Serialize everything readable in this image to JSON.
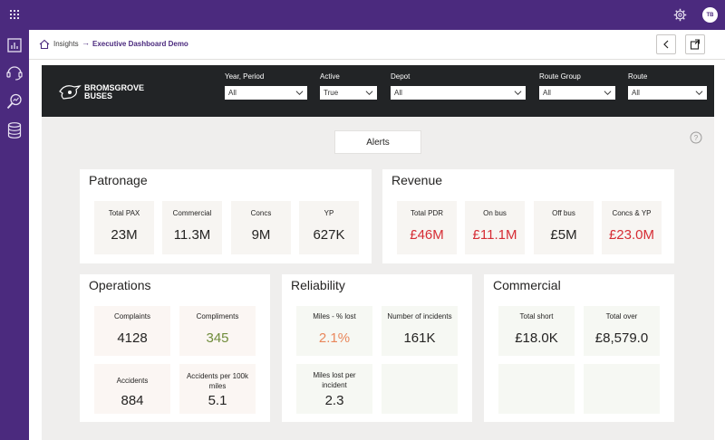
{
  "app": {
    "user_initials": "TB"
  },
  "breadcrumb": {
    "root": "Insights",
    "separator": "→",
    "current": "Executive Dashboard Demo"
  },
  "banner": {
    "logo_line1": "BROMSGROVE",
    "logo_line2": "BUSES",
    "filters": [
      {
        "label": "Year, Period",
        "value": "All"
      },
      {
        "label": "Active",
        "value": "True"
      },
      {
        "label": "Depot",
        "value": "All"
      },
      {
        "label": "Route Group",
        "value": "All"
      },
      {
        "label": "Route",
        "value": "All"
      }
    ]
  },
  "alerts_label": "Alerts",
  "patronage": {
    "title": "Patronage",
    "tiles": [
      {
        "label": "Total PAX",
        "value": "23M"
      },
      {
        "label": "Commercial",
        "value": "11.3M"
      },
      {
        "label": "Concs",
        "value": "9M"
      },
      {
        "label": "YP",
        "value": "627K"
      }
    ]
  },
  "revenue": {
    "title": "Revenue",
    "tiles": [
      {
        "label": "Total PDR",
        "value": "£46M"
      },
      {
        "label": "On bus",
        "value": "£11.1M"
      },
      {
        "label": "Off bus",
        "value": "£5M"
      },
      {
        "label": "Concs & YP",
        "value": "£23.0M"
      }
    ]
  },
  "operations": {
    "title": "Operations",
    "tiles": [
      {
        "label": "Complaints",
        "value": "4128"
      },
      {
        "label": "Compliments",
        "value": "345"
      },
      {
        "label": "Accidents",
        "value": "884"
      },
      {
        "label": "Accidents per 100k miles",
        "value": "5.1"
      }
    ]
  },
  "reliability": {
    "title": "Reliability",
    "tiles": [
      {
        "label": "Miles - % lost",
        "value": "2.1%"
      },
      {
        "label": "Number of incidents",
        "value": "161K"
      },
      {
        "label": "Miles lost per incident",
        "value": "2.3"
      }
    ]
  },
  "commercial": {
    "title": "Commercial",
    "tiles": [
      {
        "label": "Total short",
        "value": "£18.0K"
      },
      {
        "label": "Total over",
        "value": "£8,579.0"
      }
    ]
  },
  "colors": {
    "brand": "#4b2a7e",
    "negative": "#d62d35",
    "positive": "#6f8c3b",
    "warning": "#e9875b"
  },
  "icons": [
    "waffle-icon",
    "gear-icon",
    "report-icon",
    "headset-icon",
    "search-analytics-icon",
    "database-icon",
    "home-icon",
    "chevron-left-icon",
    "share-icon",
    "help-icon",
    "chevron-down-icon"
  ]
}
